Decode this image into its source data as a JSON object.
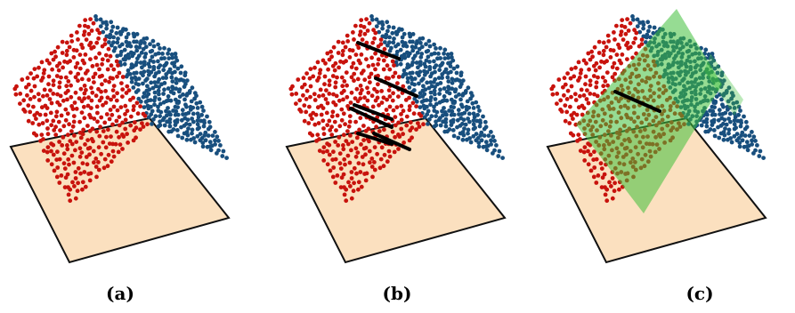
{
  "colors": {
    "plane_fill": "#fbe0bf",
    "plane_stroke": "#111111",
    "red_points": "#c8130d",
    "blue_points": "#184f7e",
    "green_plane": "#3fbf3a",
    "normal_arrow": "#000000"
  },
  "panels": [
    {
      "label": "(a)",
      "has_normals": false,
      "has_fitted_plane": false
    },
    {
      "label": "(b)",
      "has_normals": true,
      "has_fitted_plane": false
    },
    {
      "label": "(c)",
      "has_normals": true,
      "has_fitted_plane": true
    }
  ]
}
